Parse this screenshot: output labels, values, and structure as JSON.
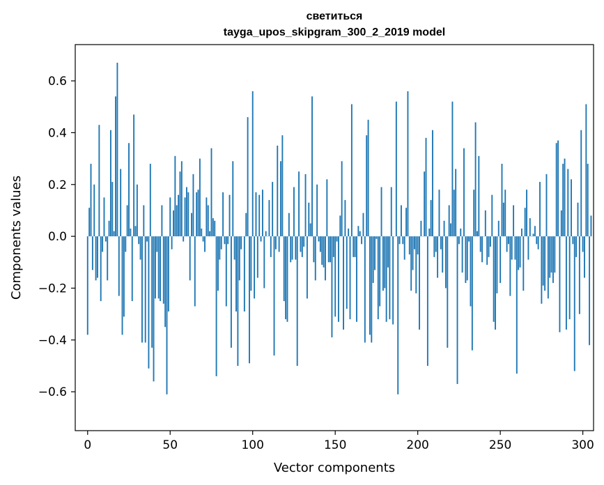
{
  "chart_data": {
    "type": "bar",
    "title": "светиться",
    "subtitle": "tayga_upos_skipgram_300_2_2019 model",
    "xlabel": "Vector components",
    "ylabel": "Components values",
    "xlim": [
      -7.5,
      306.5
    ],
    "ylim": [
      -0.75,
      0.74
    ],
    "xticks": [
      0,
      50,
      100,
      150,
      200,
      250,
      300
    ],
    "yticks": [
      -0.6,
      -0.4,
      -0.2,
      0.0,
      0.2,
      0.4,
      0.6
    ],
    "xtick_labels": [
      "0",
      "50",
      "100",
      "150",
      "200",
      "250",
      "300"
    ],
    "ytick_labels": [
      "−0.6",
      "−0.4",
      "−0.2",
      "0.0",
      "0.2",
      "0.4",
      "0.6"
    ],
    "bar_color": "#1f77b4",
    "grid": false,
    "values": [
      -0.38,
      0.11,
      0.28,
      -0.13,
      0.2,
      -0.17,
      -0.16,
      0.43,
      -0.25,
      -0.06,
      0.15,
      -0.02,
      -0.17,
      0.06,
      0.41,
      0.21,
      0.02,
      0.54,
      0.67,
      -0.23,
      0.26,
      -0.38,
      -0.31,
      -0.06,
      0.12,
      0.36,
      0.03,
      -0.25,
      0.47,
      0.04,
      0.2,
      -0.03,
      -0.09,
      -0.41,
      0.12,
      -0.41,
      -0.02,
      -0.51,
      0.28,
      -0.43,
      -0.56,
      -0.24,
      -0.06,
      -0.24,
      -0.25,
      0.12,
      -0.26,
      -0.35,
      -0.61,
      -0.29,
      0.15,
      -0.05,
      0.1,
      0.31,
      0.12,
      0.16,
      0.25,
      0.29,
      -0.02,
      0.15,
      0.19,
      0.17,
      -0.17,
      0.09,
      0.24,
      -0.27,
      0.17,
      0.18,
      0.3,
      0.03,
      -0.02,
      -0.06,
      0.15,
      0.12,
      0.02,
      0.34,
      0.07,
      0.06,
      -0.54,
      -0.21,
      -0.09,
      -0.05,
      0.17,
      -0.03,
      -0.27,
      -0.03,
      0.16,
      -0.43,
      0.29,
      -0.09,
      -0.29,
      -0.5,
      -0.17,
      -0.05,
      0.0,
      -0.29,
      0.09,
      0.46,
      -0.49,
      -0.21,
      0.56,
      -0.24,
      0.17,
      -0.16,
      0.16,
      -0.02,
      0.18,
      -0.2,
      0.02,
      0.0,
      0.14,
      -0.08,
      0.21,
      -0.46,
      -0.05,
      0.35,
      -0.06,
      0.29,
      0.39,
      -0.25,
      -0.32,
      -0.33,
      0.09,
      -0.1,
      -0.09,
      0.19,
      -0.09,
      -0.5,
      0.25,
      -0.06,
      -0.08,
      -0.04,
      0.24,
      -0.24,
      0.13,
      0.05,
      0.54,
      -0.1,
      -0.17,
      0.2,
      -0.02,
      -0.06,
      -0.11,
      -0.12,
      -0.17,
      0.22,
      -0.1,
      -0.1,
      -0.39,
      -0.08,
      -0.31,
      -0.02,
      -0.33,
      0.08,
      0.29,
      -0.36,
      0.14,
      -0.28,
      0.03,
      -0.32,
      0.51,
      -0.08,
      -0.08,
      -0.33,
      0.04,
      0.02,
      -0.03,
      0.09,
      -0.41,
      0.39,
      0.45,
      -0.38,
      -0.41,
      -0.18,
      -0.13,
      -0.01,
      -0.32,
      -0.27,
      0.19,
      -0.21,
      -0.2,
      -0.33,
      -0.12,
      -0.32,
      0.19,
      -0.34,
      0.0,
      0.52,
      -0.61,
      -0.03,
      0.12,
      -0.03,
      -0.09,
      0.11,
      0.56,
      -0.07,
      -0.21,
      -0.13,
      -0.05,
      -0.22,
      -0.07,
      -0.36,
      0.06,
      0.0,
      0.25,
      0.38,
      -0.5,
      0.03,
      0.14,
      0.41,
      -0.08,
      -0.06,
      -0.16,
      0.18,
      -0.05,
      -0.14,
      0.06,
      -0.2,
      -0.43,
      0.12,
      0.05,
      0.52,
      0.18,
      0.26,
      -0.57,
      -0.03,
      0.03,
      -0.14,
      0.34,
      -0.18,
      -0.17,
      -0.02,
      -0.27,
      -0.44,
      0.18,
      0.44,
      0.02,
      0.31,
      -0.06,
      -0.1,
      0.0,
      0.1,
      -0.11,
      -0.08,
      -0.04,
      0.16,
      -0.33,
      -0.36,
      -0.22,
      0.06,
      -0.18,
      0.28,
      0.13,
      0.18,
      -0.06,
      -0.03,
      -0.23,
      -0.09,
      0.12,
      -0.09,
      -0.53,
      -0.13,
      -0.12,
      0.03,
      -0.21,
      0.11,
      0.18,
      -0.09,
      0.07,
      0.0,
      0.01,
      0.04,
      -0.03,
      -0.05,
      0.21,
      -0.26,
      -0.19,
      -0.21,
      0.24,
      -0.24,
      -0.16,
      -0.14,
      -0.18,
      -0.14,
      0.36,
      0.37,
      -0.37,
      0.1,
      0.28,
      0.3,
      -0.36,
      0.26,
      -0.32,
      0.22,
      -0.03,
      -0.52,
      -0.08,
      0.13,
      -0.3,
      0.41,
      -0.06,
      -0.16,
      0.51,
      0.28,
      -0.42,
      0.08
    ]
  }
}
